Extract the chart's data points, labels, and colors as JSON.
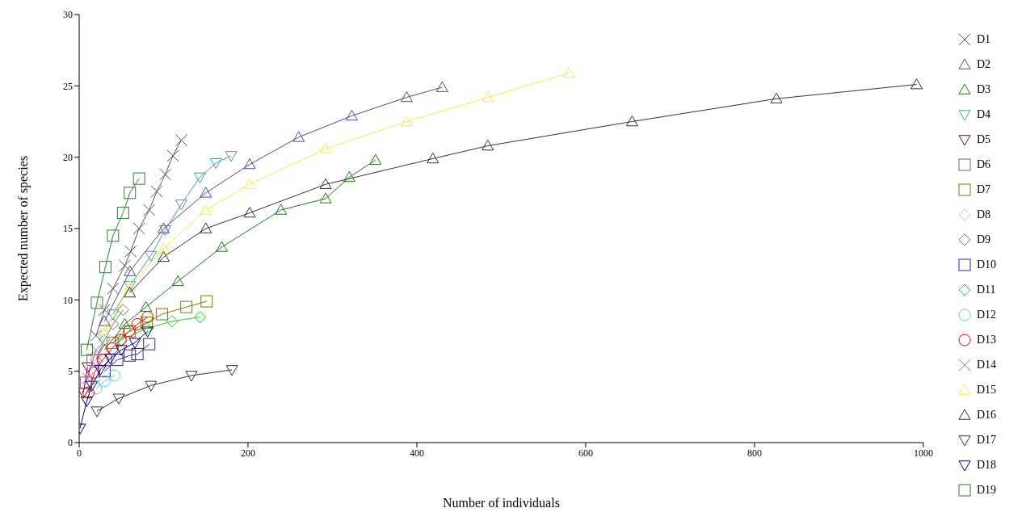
{
  "chart_data": {
    "type": "line",
    "xlabel": "Number of individuals",
    "ylabel": "Expected number of species",
    "xlim": [
      0,
      1000
    ],
    "xticks": [
      0,
      200,
      400,
      600,
      800,
      1000
    ],
    "ylim": [
      0,
      30
    ],
    "yticks": [
      0,
      5,
      10,
      15,
      20,
      25,
      30
    ],
    "grid": false,
    "legend": "right",
    "line_style": "solid",
    "series": [
      {
        "name": "D1",
        "color": "#555555",
        "marker": "cross",
        "x": [
          20,
          30,
          40,
          54,
          61,
          71,
          83,
          92,
          102,
          111,
          121
        ],
        "values": [
          7.5,
          9.3,
          10.8,
          12.4,
          13.4,
          15.0,
          16.3,
          17.6,
          18.8,
          20.1,
          21.2
        ]
      },
      {
        "name": "D2",
        "color": "#4b4b8f",
        "marker": "triangle",
        "x": [
          30,
          60,
          100,
          150,
          202,
          260,
          323,
          388,
          430
        ],
        "values": [
          8.5,
          12,
          15,
          17.5,
          19.5,
          21.4,
          22.9,
          24.2,
          24.9
        ]
      },
      {
        "name": "D3",
        "color": "#1a7a1a",
        "marker": "triangle",
        "x": [
          30,
          54,
          79,
          117,
          169,
          239,
          292,
          320,
          351
        ],
        "values": [
          6.5,
          8.3,
          9.5,
          11.3,
          13.7,
          16.3,
          17.1,
          18.6,
          19.8
        ]
      },
      {
        "name": "D4",
        "color": "#4a9a9a",
        "marker": "triangle-down",
        "x": [
          40,
          60,
          85,
          102,
          121,
          143,
          162,
          180
        ],
        "values": [
          9,
          11,
          13.1,
          14.9,
          16.7,
          18.6,
          19.6,
          20.1
        ]
      },
      {
        "name": "D5",
        "color": "#7a0000",
        "marker": "triangle-down",
        "x": [
          5,
          10
        ],
        "values": [
          3.5,
          5.3
        ]
      },
      {
        "name": "D6",
        "color": "#8a5a8a",
        "marker": "square",
        "x": [
          8,
          16
        ],
        "values": [
          4.2,
          5.8
        ]
      },
      {
        "name": "D7",
        "color": "#7a7a00",
        "marker": "square",
        "x": [
          40,
          60,
          80,
          98,
          127,
          151
        ],
        "values": [
          7,
          7.8,
          8.4,
          9.0,
          9.5,
          9.9
        ]
      },
      {
        "name": "D8",
        "color": "#cccccc",
        "marker": "diamond",
        "x": [
          20,
          30
        ],
        "values": [
          6,
          7.5
        ]
      },
      {
        "name": "D9",
        "color": "#777777",
        "marker": "diamond",
        "x": [
          20,
          30,
          40,
          52
        ],
        "values": [
          5.8,
          7.2,
          8.3,
          9.3
        ]
      },
      {
        "name": "D10",
        "color": "#2a2a9a",
        "marker": "square",
        "x": [
          30,
          45,
          60,
          69,
          83
        ],
        "values": [
          5,
          5.8,
          6.1,
          6.2,
          6.9
        ]
      },
      {
        "name": "D11",
        "color": "#33cc33",
        "marker": "diamond",
        "x": [
          50,
          80,
          110,
          143
        ],
        "values": [
          7.2,
          8,
          8.5,
          8.8
        ]
      },
      {
        "name": "D12",
        "color": "#66cccc",
        "marker": "circle",
        "x": [
          20,
          30,
          42
        ],
        "values": [
          3.8,
          4.3,
          4.7
        ]
      },
      {
        "name": "D13",
        "color": "#ee0000",
        "marker": "circle",
        "x": [
          11,
          18,
          28,
          39,
          49,
          59,
          69,
          81
        ],
        "values": [
          3.5,
          4.9,
          5.8,
          6.6,
          7.2,
          7.8,
          8.3,
          8.8
        ]
      },
      {
        "name": "D14",
        "color": "#cc66cc",
        "marker": "cross",
        "x": [
          10,
          20
        ],
        "values": [
          4.5,
          6.5
        ]
      },
      {
        "name": "D15",
        "color": "#eeee44",
        "marker": "triangle",
        "x": [
          30,
          60,
          100,
          150,
          202,
          292,
          388,
          484,
          580
        ],
        "values": [
          7.8,
          11,
          13.6,
          16.3,
          18.1,
          20.6,
          22.5,
          24.2,
          25.9
        ]
      },
      {
        "name": "D16",
        "color": "#333333",
        "marker": "triangle",
        "x": [
          60,
          100,
          150,
          202,
          292,
          419,
          484,
          655,
          826,
          992
        ],
        "values": [
          10.5,
          13,
          15,
          16.1,
          18.1,
          19.9,
          20.8,
          22.5,
          24.1,
          25.1
        ]
      },
      {
        "name": "D17",
        "color": "#333333",
        "marker": "triangle-down",
        "x": [
          21,
          47,
          85,
          133,
          181
        ],
        "values": [
          2.2,
          3.1,
          4.0,
          4.7,
          5.1
        ]
      },
      {
        "name": "D18",
        "color": "#000080",
        "marker": "triangle-down",
        "x": [
          1,
          9,
          15,
          25,
          37,
          50,
          66,
          81
        ],
        "values": [
          1,
          2.9,
          4.0,
          5.1,
          5.9,
          6.5,
          7.0,
          7.8
        ]
      },
      {
        "name": "D19",
        "color": "#2e7d32",
        "marker": "square",
        "x": [
          9,
          21,
          31,
          40,
          52,
          60,
          71
        ],
        "values": [
          6.5,
          9.8,
          12.3,
          14.5,
          16.1,
          17.5,
          18.5
        ]
      }
    ]
  }
}
